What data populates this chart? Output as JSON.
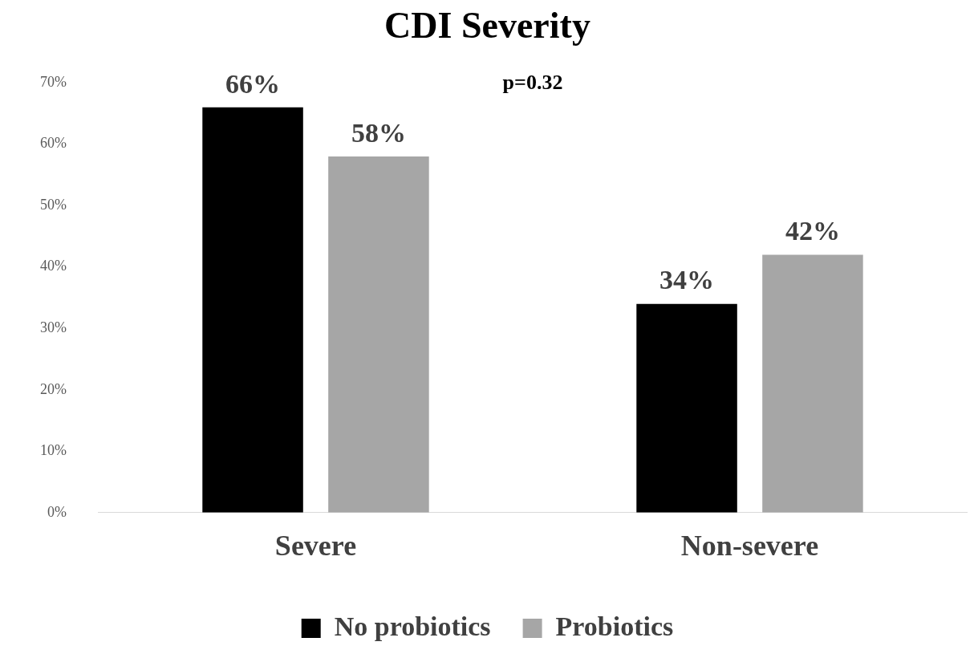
{
  "chart_data": {
    "type": "bar",
    "title": "CDI Severity",
    "categories": [
      "Severe",
      "Non-severe"
    ],
    "series": [
      {
        "name": "No probiotics",
        "color": "#000000",
        "values": [
          66,
          34
        ],
        "value_labels": [
          "66%",
          "34%"
        ]
      },
      {
        "name": "Probiotics",
        "color": "#a6a6a6",
        "values": [
          58,
          42
        ],
        "value_labels": [
          "58%",
          "42%"
        ]
      }
    ],
    "ylim": [
      0,
      70
    ],
    "yticks": [
      {
        "value": 0,
        "label": "0%"
      },
      {
        "value": 10,
        "label": "10%"
      },
      {
        "value": 20,
        "label": "20%"
      },
      {
        "value": 30,
        "label": "30%"
      },
      {
        "value": 40,
        "label": "40%"
      },
      {
        "value": 50,
        "label": "50%"
      },
      {
        "value": 60,
        "label": "60%"
      },
      {
        "value": 70,
        "label": "70%"
      }
    ],
    "annotations": [
      "p=0.32"
    ],
    "grid": false,
    "legend": "bottom"
  }
}
